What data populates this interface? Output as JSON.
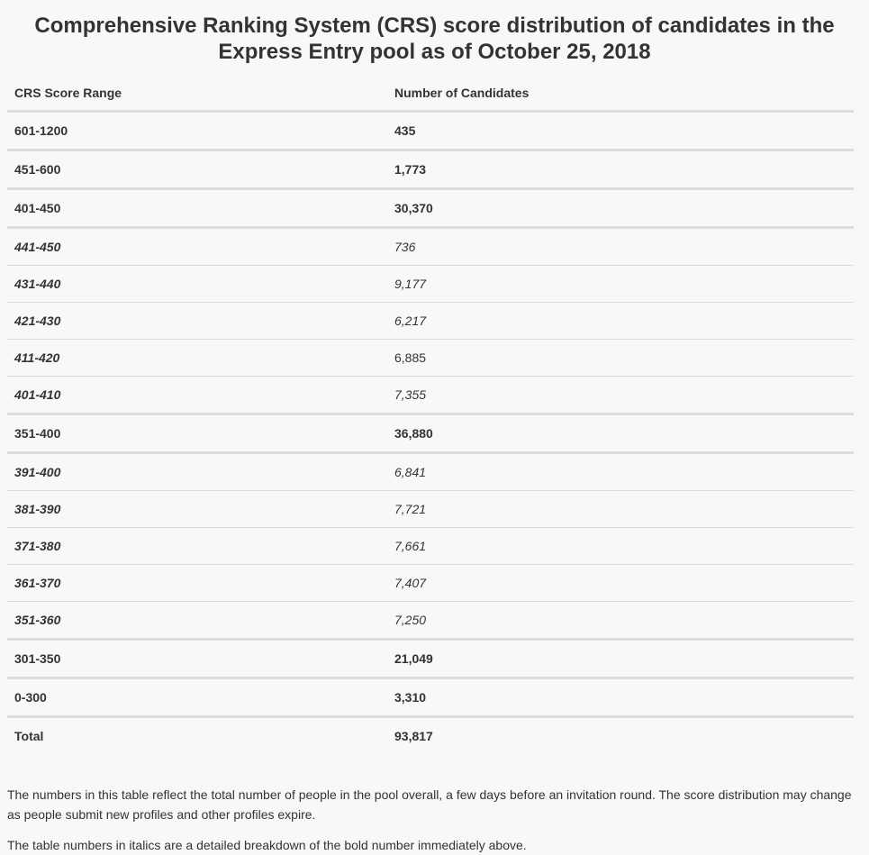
{
  "title": "Comprehensive Ranking System (CRS) score distribution of candidates in the Express Entry pool as of October 25, 2018",
  "table": {
    "headers": [
      "CRS Score Range",
      "Number of Candidates"
    ],
    "rows": [
      {
        "range": "601-1200",
        "count": "435",
        "type": "bold",
        "italic_value": false
      },
      {
        "range": "451-600",
        "count": "1,773",
        "type": "bold",
        "italic_value": false
      },
      {
        "range": "401-450",
        "count": "30,370",
        "type": "bold",
        "italic_value": false
      },
      {
        "range": "441-450",
        "count": "736",
        "type": "sub",
        "italic_value": true
      },
      {
        "range": "431-440",
        "count": "9,177",
        "type": "sub",
        "italic_value": true
      },
      {
        "range": "421-430",
        "count": "6,217",
        "type": "sub",
        "italic_value": true
      },
      {
        "range": "411-420",
        "count": "6,885",
        "type": "sub",
        "italic_value": false
      },
      {
        "range": "401-410",
        "count": "7,355",
        "type": "sub",
        "italic_value": true
      },
      {
        "range": "351-400",
        "count": "36,880",
        "type": "bold",
        "italic_value": false
      },
      {
        "range": "391-400",
        "count": "6,841",
        "type": "sub",
        "italic_value": true
      },
      {
        "range": "381-390",
        "count": "7,721",
        "type": "sub",
        "italic_value": true
      },
      {
        "range": "371-380",
        "count": "7,661",
        "type": "sub",
        "italic_value": true
      },
      {
        "range": "361-370",
        "count": "7,407",
        "type": "sub",
        "italic_value": true
      },
      {
        "range": "351-360",
        "count": "7,250",
        "type": "sub",
        "italic_value": true
      },
      {
        "range": "301-350",
        "count": "21,049",
        "type": "bold",
        "italic_value": false
      },
      {
        "range": "0-300",
        "count": "3,310",
        "type": "bold",
        "italic_value": false
      },
      {
        "range": "Total",
        "count": "93,817",
        "type": "total",
        "italic_value": false
      }
    ]
  },
  "notes": [
    "The numbers in this table reflect the total number of people in the pool overall, a few days before an invitation round. The score distribution may change as people submit new profiles and other profiles expire.",
    "The table numbers in italics are a detailed breakdown of the bold number immediately above."
  ]
}
